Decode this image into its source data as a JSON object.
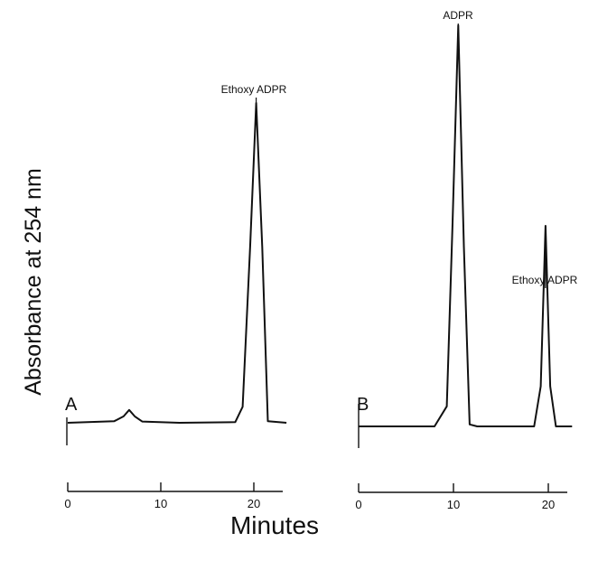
{
  "chart_data": [
    {
      "type": "line",
      "panel_label": "A",
      "ylabel": "Absorbance at 254 nm",
      "xlabel": "Minutes",
      "xlim": [
        0,
        23.5
      ],
      "ylim": [
        0,
        1.0
      ],
      "x_ticks": [
        "0",
        "10",
        "20"
      ],
      "series": [
        {
          "x": [
            0,
            5.0,
            6.0,
            6.6,
            7.2,
            8.0,
            12.0,
            18.0,
            18.8,
            19.6,
            20.25,
            20.9,
            21.5,
            23.5
          ],
          "values": [
            0.0,
            0.005,
            0.02,
            0.04,
            0.02,
            0.004,
            0.0,
            0.002,
            0.05,
            0.55,
            1.0,
            0.55,
            0.005,
            0.0
          ]
        }
      ],
      "annotations": [
        {
          "text": "Ethoxy ADPR",
          "x": 20.25,
          "y": 1.0
        }
      ]
    },
    {
      "type": "line",
      "panel_label": "B",
      "ylabel": "Absorbance at 254 nm",
      "xlabel": "Minutes",
      "xlim": [
        0,
        22.5
      ],
      "ylim": [
        0,
        1.0
      ],
      "x_ticks": [
        "0",
        "10",
        "20"
      ],
      "series": [
        {
          "x": [
            0,
            8.0,
            9.3,
            9.9,
            10.5,
            11.1,
            11.7,
            12.5,
            18.5,
            19.2,
            19.7,
            20.2,
            20.8,
            22.5
          ],
          "values": [
            0.0,
            0.0,
            0.05,
            0.5,
            1.0,
            0.45,
            0.005,
            0.0,
            0.0,
            0.1,
            0.5,
            0.1,
            0.0,
            0.0
          ]
        }
      ],
      "annotations": [
        {
          "text": "ADPR",
          "x": 10.5,
          "y": 1.0
        },
        {
          "text": "Ethoxy ADPR",
          "x": 19.7,
          "y": 0.5
        }
      ]
    }
  ]
}
